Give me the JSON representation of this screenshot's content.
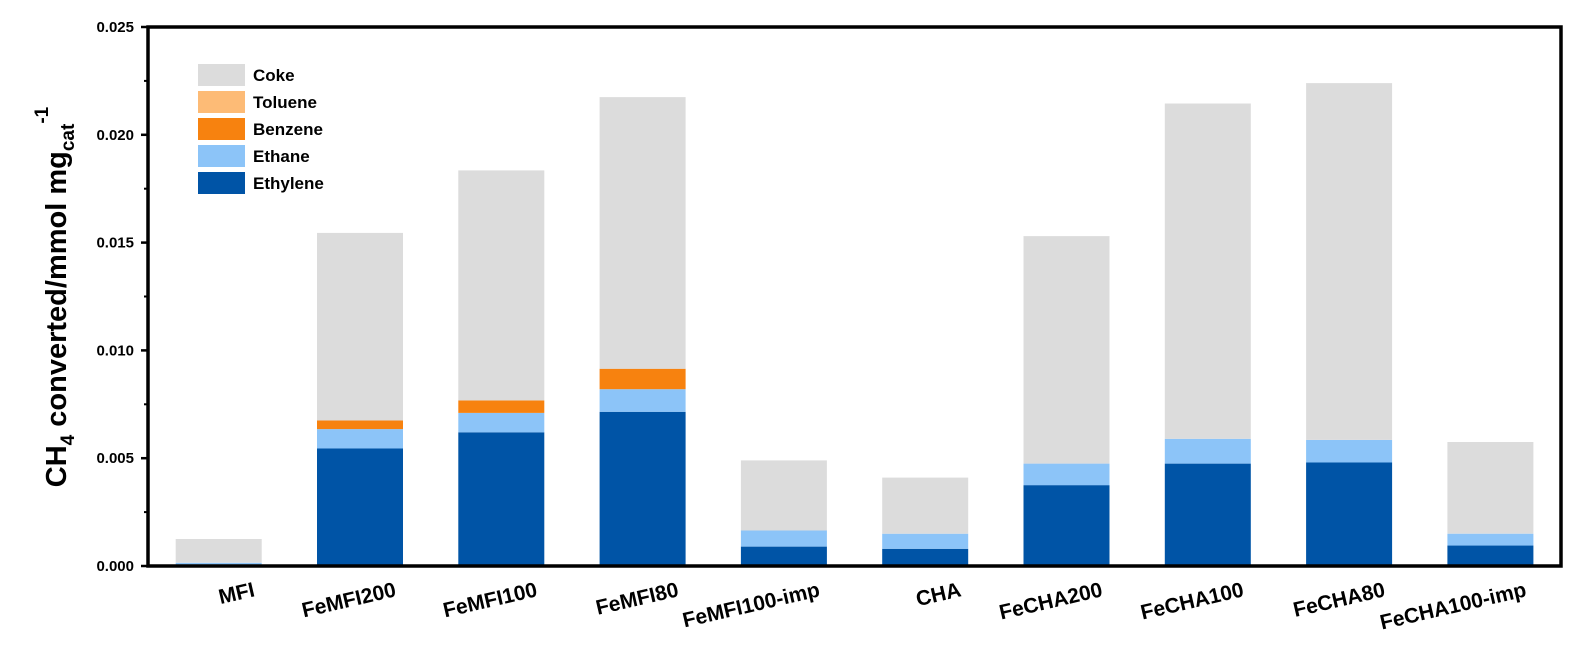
{
  "chart_data": {
    "type": "bar",
    "stacked": true,
    "title": "",
    "xlabel": "",
    "ylabel": {
      "main": "CH",
      "sub1": "4",
      "mid": " converted/mmol mg",
      "sub2": "cat",
      "sup": "-1"
    },
    "ylim": [
      0,
      0.025
    ],
    "yticks": [
      "0.000",
      "0.005",
      "0.010",
      "0.015",
      "0.020",
      "0.025"
    ],
    "ytick_values": [
      0,
      0.005,
      0.01,
      0.015,
      0.02,
      0.025
    ],
    "legend_position": "top-left",
    "categories": [
      "MFI",
      "FeMFI200",
      "FeMFI100",
      "FeMFI80",
      "FeMFI100-imp",
      "CHA",
      "FeCHA200",
      "FeCHA100",
      "FeCHA80",
      "FeCHA100-imp"
    ],
    "series": [
      {
        "name": "Ethylene",
        "color": "#0054a6",
        "values": [
          0.0,
          0.00545,
          0.0062,
          0.00715,
          0.0009,
          0.0008,
          0.00375,
          0.00475,
          0.0048,
          0.00095
        ]
      },
      {
        "name": "Ethane",
        "color": "#8cc4f8",
        "values": [
          0.00015,
          0.0009,
          0.0009,
          0.00105,
          0.00075,
          0.0007,
          0.001,
          0.00115,
          0.00105,
          0.00055
        ]
      },
      {
        "name": "Benzene",
        "color": "#f7820f",
        "values": [
          0.0,
          0.0004,
          0.00058,
          0.00095,
          0.0,
          0.0,
          0.0,
          0.0,
          0.0,
          0.0
        ]
      },
      {
        "name": "Toluene",
        "color": "#fdbb76",
        "values": [
          0.0,
          0.0,
          0.0,
          0.0,
          0.0,
          0.0,
          0.0,
          0.0,
          0.0,
          0.0
        ]
      },
      {
        "name": "Coke",
        "color": "#dcdcdc",
        "values": [
          0.0011,
          0.0087,
          0.01067,
          0.0126,
          0.00325,
          0.0026,
          0.01055,
          0.01555,
          0.01655,
          0.00425
        ]
      }
    ],
    "legend_order": [
      "Coke",
      "Toluene",
      "Benzene",
      "Ethane",
      "Ethylene"
    ]
  }
}
